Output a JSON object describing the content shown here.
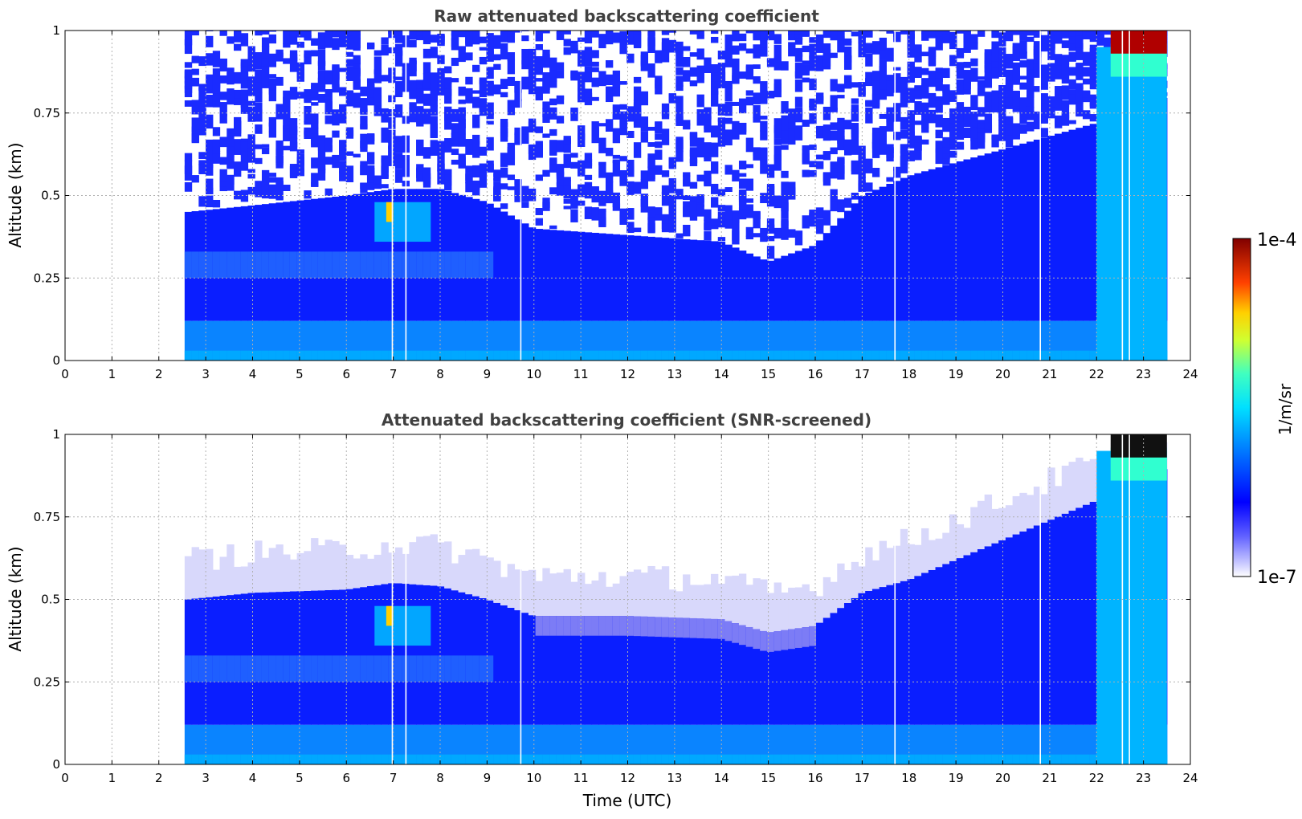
{
  "chart_data": [
    {
      "type": "heatmap",
      "title": "Raw attenuated backscattering coefficient",
      "xlabel": "",
      "ylabel": "Altitude (km)",
      "xlim": [
        0,
        24
      ],
      "ylim": [
        0,
        1
      ],
      "x_ticks": [
        "0",
        "1",
        "2",
        "3",
        "4",
        "5",
        "6",
        "7",
        "8",
        "9",
        "10",
        "11",
        "12",
        "13",
        "14",
        "15",
        "16",
        "17",
        "18",
        "19",
        "20",
        "21",
        "22",
        "23",
        "24"
      ],
      "y_ticks": [
        "0",
        "0.25",
        "0.5",
        "0.75",
        "1"
      ],
      "data_time_range": [
        2.55,
        23.5
      ],
      "boundary_layer_top_km": {
        "x": [
          2.6,
          4,
          6,
          7,
          8,
          9,
          10,
          12,
          14,
          15,
          16,
          17,
          18,
          19,
          20,
          21,
          22,
          23.5
        ],
        "y": [
          0.45,
          0.47,
          0.5,
          0.52,
          0.52,
          0.48,
          0.4,
          0.38,
          0.36,
          0.3,
          0.35,
          0.5,
          0.56,
          0.6,
          0.64,
          0.68,
          0.72,
          0.8
        ]
      },
      "data_gaps_utc": [
        6.98,
        7.27,
        9.72,
        17.7,
        20.8,
        22.55,
        22.7
      ],
      "grid": true
    },
    {
      "type": "heatmap",
      "title": "Attenuated backscattering coefficient (SNR-screened)",
      "xlabel": "Time (UTC)",
      "ylabel": "Altitude (km)",
      "xlim": [
        0,
        24
      ],
      "ylim": [
        0,
        1
      ],
      "x_ticks": [
        "0",
        "1",
        "2",
        "3",
        "4",
        "5",
        "6",
        "7",
        "8",
        "9",
        "10",
        "11",
        "12",
        "13",
        "14",
        "15",
        "16",
        "17",
        "18",
        "19",
        "20",
        "21",
        "22",
        "23",
        "24"
      ],
      "y_ticks": [
        "0",
        "0.25",
        "0.5",
        "0.75",
        "1"
      ],
      "data_time_range": [
        2.55,
        23.5
      ],
      "boundary_layer_top_km": {
        "x": [
          2.6,
          4,
          6,
          7,
          8,
          9,
          10,
          12,
          14,
          15,
          16,
          17,
          18,
          19,
          20,
          21,
          22,
          23.5
        ],
        "y": [
          0.5,
          0.52,
          0.53,
          0.55,
          0.54,
          0.5,
          0.45,
          0.45,
          0.44,
          0.4,
          0.42,
          0.52,
          0.56,
          0.62,
          0.68,
          0.74,
          0.8,
          0.9
        ]
      },
      "data_gaps_utc": [
        6.98,
        7.27,
        9.72,
        17.7,
        20.8,
        22.55,
        22.7
      ],
      "grid": true
    }
  ],
  "colorbar": {
    "max_label": "1e-4",
    "min_label": "1e-7",
    "units_label": "1/m/sr",
    "colors": [
      "#e8e8ff",
      "#8080ff",
      "#0000ff",
      "#00a0ff",
      "#00ffff",
      "#80ff80",
      "#ffff00",
      "#ff8000",
      "#ff0000",
      "#800000"
    ]
  }
}
